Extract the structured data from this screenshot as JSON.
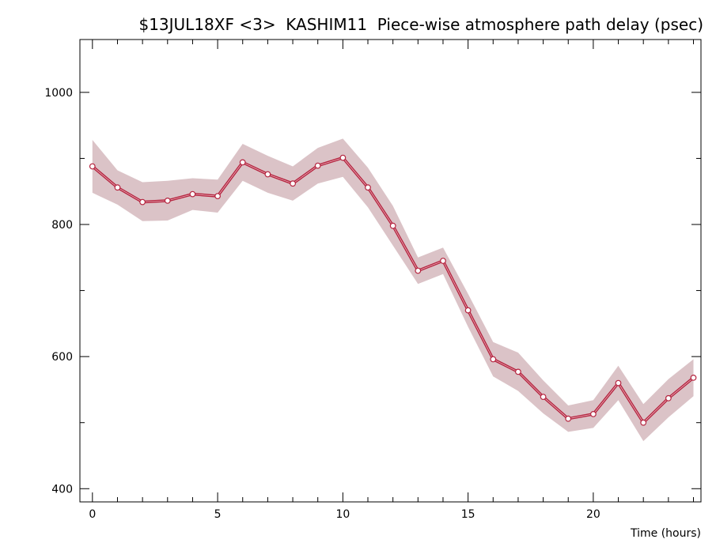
{
  "chart_data": {
    "type": "line",
    "title": "$13JUL18XF <3>  KASHIM11  Piece-wise atmosphere path delay (psec)",
    "xlabel": "Time (hours)",
    "ylabel": "",
    "xlim": [
      -0.5,
      24.3
    ],
    "ylim": [
      380,
      1080
    ],
    "x_ticks": [
      0,
      5,
      10,
      15,
      20
    ],
    "y_ticks": [
      400,
      600,
      800,
      1000
    ],
    "x_minor_step": 1,
    "y_minor_step": 100,
    "grid": false,
    "colors": {
      "line": "#b5243f",
      "band": "#dbc3c7",
      "marker_fill": "#ffffff",
      "axis": "#000000"
    },
    "series": [
      {
        "x": [
          0,
          1,
          2,
          3,
          4,
          5,
          6,
          7,
          8,
          9,
          10,
          11,
          12,
          13,
          14,
          15,
          16,
          17,
          18,
          19,
          20,
          21,
          22,
          23,
          24
        ],
        "values": [
          888,
          856,
          834,
          836,
          846,
          843,
          894,
          876,
          862,
          889,
          901,
          856,
          798,
          730,
          745,
          670,
          596,
          577,
          539,
          506,
          513,
          560,
          500,
          537,
          568
        ],
        "band_upper": [
          928,
          882,
          864,
          866,
          870,
          868,
          922,
          904,
          888,
          916,
          930,
          886,
          828,
          750,
          765,
          695,
          622,
          606,
          564,
          526,
          534,
          586,
          528,
          566,
          596
        ],
        "band_lower": [
          848,
          830,
          805,
          806,
          822,
          818,
          866,
          848,
          836,
          862,
          872,
          826,
          768,
          710,
          725,
          645,
          570,
          548,
          514,
          486,
          492,
          534,
          472,
          508,
          540
        ]
      }
    ]
  }
}
